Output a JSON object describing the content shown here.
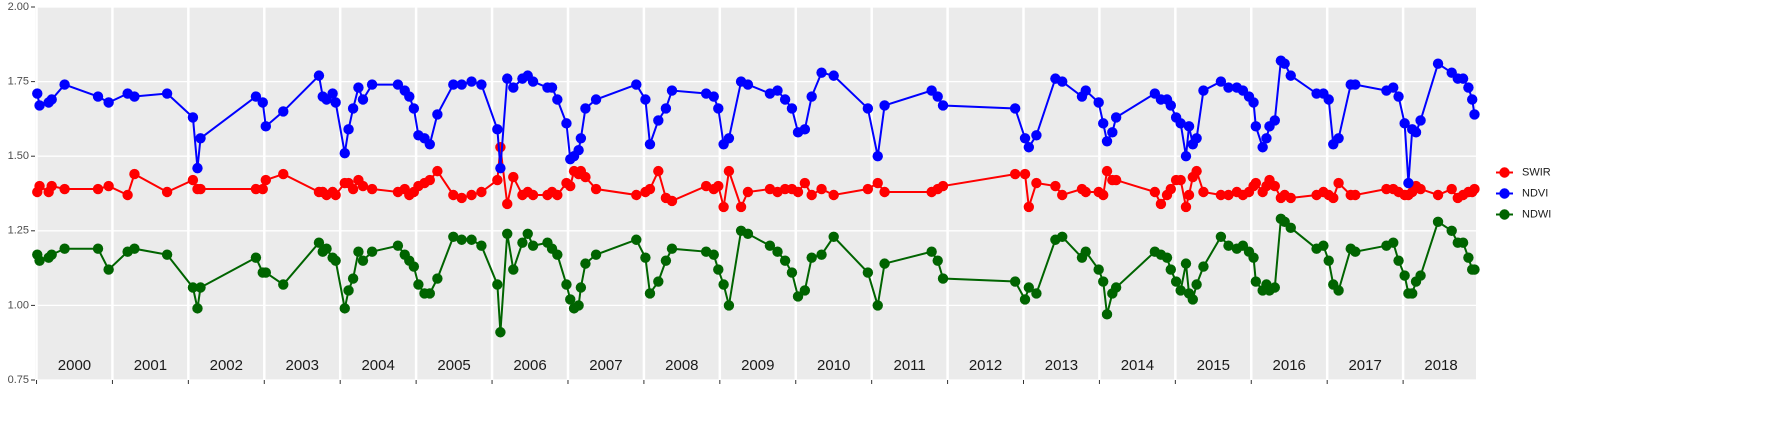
{
  "chart_data": {
    "type": "line",
    "x": [
      2000.01,
      2000.04,
      2000.16,
      2000.2,
      2000.37,
      2000.81,
      2000.95,
      2001.2,
      2001.29,
      2001.72,
      2002.06,
      2002.12,
      2002.16,
      2002.89,
      2002.98,
      2003.02,
      2003.25,
      2003.72,
      2003.77,
      2003.82,
      2003.9,
      2003.94,
      2004.06,
      2004.11,
      2004.17,
      2004.24,
      2004.3,
      2004.42,
      2004.76,
      2004.85,
      2004.91,
      2004.97,
      2005.03,
      2005.11,
      2005.18,
      2005.28,
      2005.49,
      2005.6,
      2005.73,
      2005.86,
      2006.07,
      2006.11,
      2006.2,
      2006.28,
      2006.4,
      2006.47,
      2006.54,
      2006.73,
      2006.79,
      2006.86,
      2006.98,
      2007.03,
      2007.08,
      2007.14,
      2007.17,
      2007.23,
      2007.37,
      2007.9,
      2008.02,
      2008.08,
      2008.19,
      2008.29,
      2008.37,
      2008.82,
      2008.92,
      2008.98,
      2009.05,
      2009.12,
      2009.28,
      2009.37,
      2009.66,
      2009.76,
      2009.86,
      2009.95,
      2010.03,
      2010.12,
      2010.21,
      2010.34,
      2010.5,
      2010.95,
      2011.08,
      2011.17,
      2011.79,
      2011.87,
      2011.94,
      2012.89,
      2013.02,
      2013.07,
      2013.17,
      2013.42,
      2013.51,
      2013.77,
      2013.82,
      2013.99,
      2014.05,
      2014.1,
      2014.17,
      2014.22,
      2014.73,
      2014.81,
      2014.89,
      2014.94,
      2015.01,
      2015.07,
      2015.14,
      2015.18,
      2015.23,
      2015.28,
      2015.37,
      2015.6,
      2015.7,
      2015.81,
      2015.89,
      2015.97,
      2016.03,
      2016.06,
      2016.15,
      2016.2,
      2016.24,
      2016.31,
      2016.39,
      2016.44,
      2016.52,
      2016.86,
      2016.95,
      2017.02,
      2017.08,
      2017.15,
      2017.31,
      2017.37,
      2017.78,
      2017.87,
      2017.94,
      2018.02,
      2018.07,
      2018.12,
      2018.17,
      2018.23,
      2018.46,
      2018.64,
      2018.72,
      2018.79,
      2018.86,
      2018.91,
      2018.94
    ],
    "series": [
      {
        "name": "SWIR",
        "color": "#ff0000",
        "values": [
          1.38,
          1.4,
          1.38,
          1.4,
          1.39,
          1.39,
          1.4,
          1.37,
          1.44,
          1.38,
          1.42,
          1.39,
          1.39,
          1.39,
          1.39,
          1.42,
          1.44,
          1.38,
          1.38,
          1.37,
          1.38,
          1.37,
          1.41,
          1.41,
          1.39,
          1.42,
          1.4,
          1.39,
          1.38,
          1.39,
          1.37,
          1.38,
          1.4,
          1.41,
          1.42,
          1.45,
          1.37,
          1.36,
          1.37,
          1.38,
          1.42,
          1.53,
          1.34,
          1.43,
          1.37,
          1.38,
          1.37,
          1.37,
          1.38,
          1.37,
          1.41,
          1.4,
          1.45,
          1.44,
          1.45,
          1.43,
          1.39,
          1.37,
          1.38,
          1.39,
          1.45,
          1.36,
          1.35,
          1.4,
          1.39,
          1.4,
          1.33,
          1.45,
          1.33,
          1.38,
          1.39,
          1.38,
          1.39,
          1.39,
          1.38,
          1.41,
          1.37,
          1.39,
          1.37,
          1.39,
          1.41,
          1.38,
          1.38,
          1.39,
          1.4,
          1.44,
          1.44,
          1.33,
          1.41,
          1.4,
          1.37,
          1.39,
          1.38,
          1.38,
          1.37,
          1.45,
          1.42,
          1.42,
          1.38,
          1.34,
          1.37,
          1.39,
          1.42,
          1.42,
          1.33,
          1.37,
          1.43,
          1.45,
          1.38,
          1.37,
          1.37,
          1.38,
          1.37,
          1.38,
          1.4,
          1.41,
          1.38,
          1.4,
          1.42,
          1.4,
          1.36,
          1.37,
          1.36,
          1.37,
          1.38,
          1.37,
          1.36,
          1.41,
          1.37,
          1.37,
          1.39,
          1.39,
          1.38,
          1.37,
          1.37,
          1.38,
          1.4,
          1.39,
          1.37,
          1.39,
          1.36,
          1.37,
          1.38,
          1.38,
          1.39
        ]
      },
      {
        "name": "NDVI",
        "color": "#0000ff",
        "values": [
          1.71,
          1.67,
          1.68,
          1.69,
          1.74,
          1.7,
          1.68,
          1.71,
          1.7,
          1.71,
          1.63,
          1.46,
          1.56,
          1.7,
          1.68,
          1.6,
          1.65,
          1.77,
          1.7,
          1.69,
          1.71,
          1.68,
          1.51,
          1.59,
          1.66,
          1.73,
          1.69,
          1.74,
          1.74,
          1.72,
          1.7,
          1.66,
          1.57,
          1.56,
          1.54,
          1.64,
          1.74,
          1.74,
          1.75,
          1.74,
          1.59,
          1.46,
          1.76,
          1.73,
          1.76,
          1.77,
          1.75,
          1.73,
          1.73,
          1.69,
          1.61,
          1.49,
          1.5,
          1.52,
          1.56,
          1.66,
          1.69,
          1.74,
          1.69,
          1.54,
          1.62,
          1.66,
          1.72,
          1.71,
          1.7,
          1.66,
          1.54,
          1.56,
          1.75,
          1.74,
          1.71,
          1.72,
          1.69,
          1.66,
          1.58,
          1.59,
          1.7,
          1.78,
          1.77,
          1.66,
          1.5,
          1.67,
          1.72,
          1.7,
          1.67,
          1.66,
          1.56,
          1.53,
          1.57,
          1.76,
          1.75,
          1.7,
          1.72,
          1.68,
          1.61,
          1.55,
          1.58,
          1.63,
          1.71,
          1.69,
          1.69,
          1.67,
          1.63,
          1.61,
          1.5,
          1.6,
          1.54,
          1.56,
          1.72,
          1.75,
          1.73,
          1.73,
          1.72,
          1.7,
          1.68,
          1.6,
          1.53,
          1.56,
          1.6,
          1.62,
          1.82,
          1.81,
          1.77,
          1.71,
          1.71,
          1.69,
          1.54,
          1.56,
          1.74,
          1.74,
          1.72,
          1.73,
          1.7,
          1.61,
          1.41,
          1.59,
          1.58,
          1.62,
          1.81,
          1.78,
          1.76,
          1.76,
          1.73,
          1.69,
          1.64
        ]
      },
      {
        "name": "NDWI",
        "color": "#006400",
        "values": [
          1.17,
          1.15,
          1.16,
          1.17,
          1.19,
          1.19,
          1.12,
          1.18,
          1.19,
          1.17,
          1.06,
          0.99,
          1.06,
          1.16,
          1.11,
          1.11,
          1.07,
          1.21,
          1.18,
          1.19,
          1.16,
          1.15,
          0.99,
          1.05,
          1.09,
          1.18,
          1.15,
          1.18,
          1.2,
          1.17,
          1.15,
          1.13,
          1.07,
          1.04,
          1.04,
          1.09,
          1.23,
          1.22,
          1.22,
          1.2,
          1.07,
          0.91,
          1.24,
          1.12,
          1.21,
          1.24,
          1.2,
          1.21,
          1.19,
          1.17,
          1.07,
          1.02,
          0.99,
          1.0,
          1.06,
          1.14,
          1.17,
          1.22,
          1.16,
          1.04,
          1.08,
          1.15,
          1.19,
          1.18,
          1.17,
          1.12,
          1.07,
          1.0,
          1.25,
          1.24,
          1.2,
          1.18,
          1.15,
          1.11,
          1.03,
          1.05,
          1.16,
          1.17,
          1.23,
          1.11,
          1.0,
          1.14,
          1.18,
          1.15,
          1.09,
          1.08,
          1.02,
          1.06,
          1.04,
          1.22,
          1.23,
          1.16,
          1.18,
          1.12,
          1.08,
          0.97,
          1.04,
          1.06,
          1.18,
          1.17,
          1.16,
          1.12,
          1.08,
          1.05,
          1.14,
          1.04,
          1.02,
          1.07,
          1.13,
          1.23,
          1.2,
          1.19,
          1.2,
          1.18,
          1.16,
          1.08,
          1.05,
          1.07,
          1.05,
          1.06,
          1.29,
          1.28,
          1.26,
          1.19,
          1.2,
          1.15,
          1.07,
          1.05,
          1.19,
          1.18,
          1.2,
          1.21,
          1.15,
          1.1,
          1.04,
          1.04,
          1.08,
          1.1,
          1.28,
          1.25,
          1.21,
          1.21,
          1.16,
          1.12,
          1.12
        ]
      }
    ],
    "xlim": [
      1999.98,
      2018.96
    ],
    "xticks": [
      2000,
      2001,
      2002,
      2003,
      2004,
      2005,
      2006,
      2007,
      2008,
      2009,
      2010,
      2011,
      2012,
      2013,
      2014,
      2015,
      2016,
      2017,
      2018
    ],
    "ylim": [
      0.75,
      2.0
    ],
    "yticks": [
      0.75,
      {
        "value": 1,
        "label": "1.00"
      },
      1.25,
      {
        "value": 1.5,
        "label": "1.50"
      },
      1.75,
      {
        "value": 2,
        "label": "2.00"
      }
    ],
    "grid": true,
    "legend": "right"
  }
}
